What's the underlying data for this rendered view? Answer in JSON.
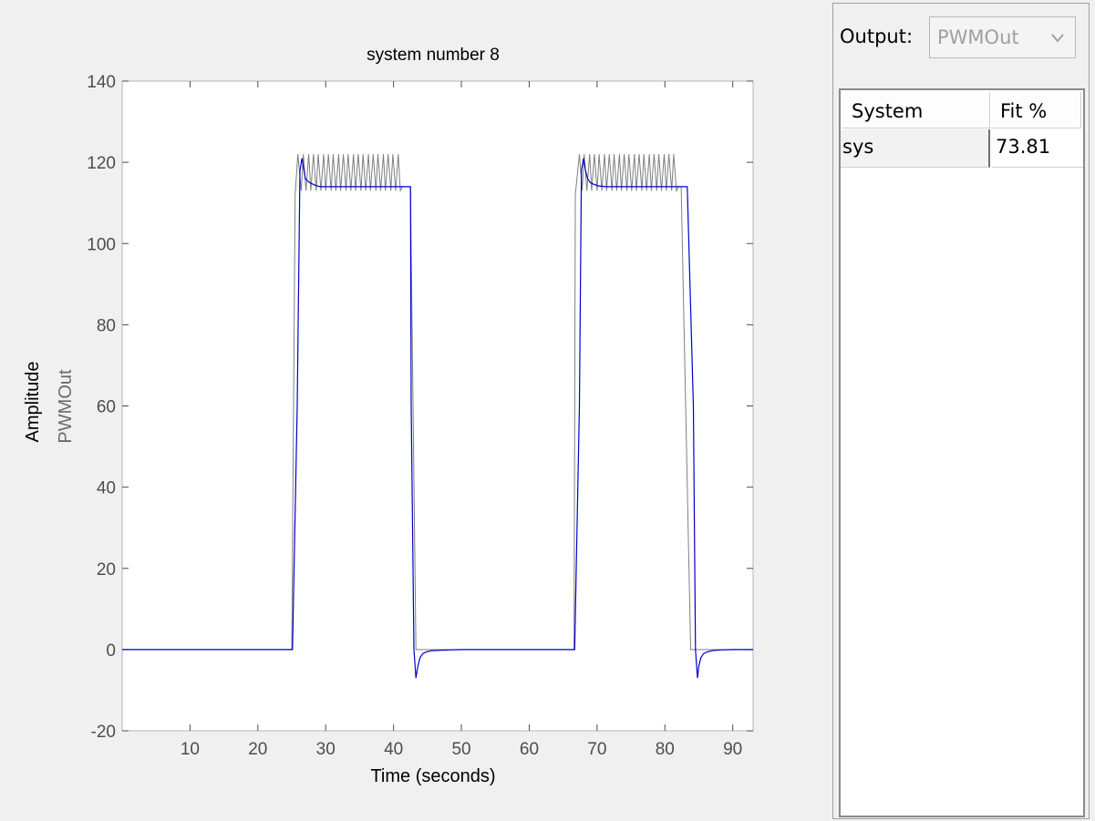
{
  "side_panel": {
    "output_label": "Output:",
    "output_selected": "PWMOut",
    "table": {
      "columns": [
        "System",
        "Fit %"
      ],
      "rows": [
        {
          "system": "sys",
          "fit": "73.81"
        }
      ]
    }
  },
  "chart_data": {
    "type": "line",
    "title": "system number 8",
    "xlabel": "Time (seconds)",
    "ylabel": "Amplitude",
    "ylabel_channel": "PWMOut",
    "xlim": [
      0,
      93
    ],
    "ylim": [
      -20,
      140
    ],
    "xticks": [
      10,
      20,
      30,
      40,
      50,
      60,
      70,
      80,
      90
    ],
    "yticks": [
      -20,
      0,
      20,
      40,
      60,
      80,
      100,
      120,
      140
    ],
    "grid": false,
    "series": [
      {
        "color": "#808080",
        "x": [
          0,
          25,
          25.5,
          25.9,
          26.4,
          26.7,
          27.1,
          27.5,
          27.8,
          28.2,
          28.6,
          28.9,
          29.3,
          29.7,
          30.0,
          30.4,
          30.8,
          31.1,
          31.5,
          31.9,
          32.2,
          32.6,
          33.0,
          33.3,
          33.7,
          34.1,
          34.4,
          34.8,
          35.2,
          35.5,
          35.9,
          36.3,
          36.6,
          37.0,
          37.4,
          37.7,
          38.1,
          38.5,
          38.8,
          39.2,
          39.6,
          39.9,
          40.3,
          40.7,
          41.0,
          41.3,
          42.5,
          43.3,
          66.6,
          66.8,
          67.4,
          67.8,
          68.1,
          68.5,
          68.9,
          69.2,
          69.6,
          70.0,
          70.3,
          70.7,
          71.1,
          71.4,
          71.8,
          72.2,
          72.5,
          72.9,
          73.3,
          73.6,
          74.0,
          74.4,
          74.7,
          75.1,
          75.5,
          75.8,
          76.2,
          76.6,
          76.9,
          77.3,
          77.7,
          78.0,
          78.4,
          78.8,
          79.1,
          79.5,
          79.9,
          80.2,
          80.6,
          81.0,
          81.3,
          81.7,
          82.0,
          82.4,
          83.8,
          84.3,
          93
        ],
        "y": [
          0,
          0,
          112,
          122,
          113,
          122,
          113,
          122,
          113,
          122,
          113,
          122,
          113,
          122,
          113,
          122,
          113,
          122,
          113,
          122,
          113,
          122,
          113,
          122,
          113,
          122,
          113,
          122,
          113,
          122,
          113,
          122,
          113,
          122,
          113,
          122,
          113,
          122,
          113,
          122,
          113,
          122,
          113,
          122,
          113,
          114,
          114,
          0,
          0,
          112,
          122,
          113,
          122,
          113,
          122,
          113,
          122,
          113,
          122,
          113,
          122,
          113,
          122,
          113,
          122,
          113,
          122,
          113,
          122,
          113,
          122,
          113,
          122,
          113,
          122,
          113,
          122,
          113,
          122,
          113,
          122,
          113,
          122,
          113,
          122,
          113,
          122,
          113,
          122,
          113,
          114,
          114,
          0,
          0,
          0
        ]
      },
      {
        "color": "#0000cc",
        "x": [
          0,
          25.1,
          25.8,
          26.2,
          26.5,
          26.8,
          27.0,
          27.3,
          27.6,
          28.0,
          28.5,
          29.2,
          30.2,
          32,
          35,
          38,
          41.5,
          42.5,
          42.6,
          43.0,
          43.3,
          43.6,
          43.9,
          44.3,
          44.8,
          45.5,
          46.5,
          48,
          50,
          55,
          60,
          66.7,
          67.4,
          67.7,
          68.0,
          68.3,
          68.6,
          69.0,
          69.5,
          70.2,
          71.2,
          73,
          76,
          80,
          83.3,
          84.2,
          84.5,
          84.8,
          85.0,
          85.3,
          85.7,
          86.2,
          86.9,
          88,
          90,
          93
        ],
        "y": [
          0,
          0,
          60,
          118,
          121,
          118,
          116,
          115.5,
          115,
          114.7,
          114.3,
          114,
          114,
          114,
          114,
          114,
          114,
          114,
          60,
          0,
          -7,
          -4,
          -2,
          -1,
          -0.6,
          -0.3,
          -0.2,
          -0.1,
          0,
          0,
          0,
          0,
          60,
          118,
          121,
          118,
          116,
          115,
          114.6,
          114.2,
          114,
          114,
          114,
          114,
          114,
          60,
          0,
          -7,
          -4,
          -2,
          -1,
          -0.6,
          -0.3,
          -0.1,
          0,
          0
        ]
      }
    ]
  }
}
